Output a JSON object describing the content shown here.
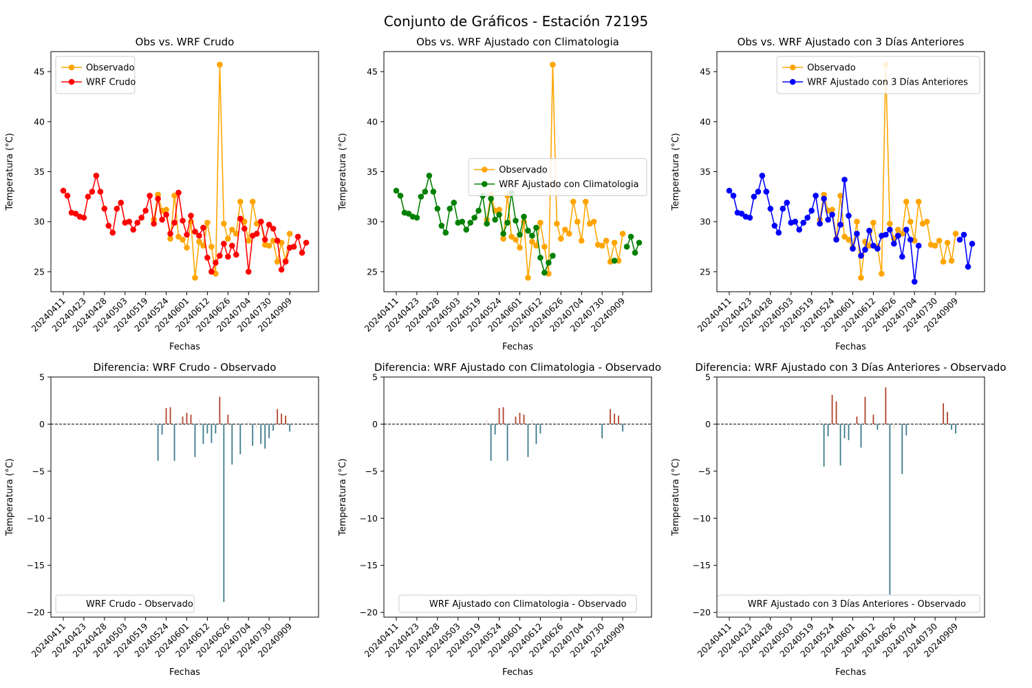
{
  "figure_title": "Conjunto de Gráficos - Estación 72195",
  "colors": {
    "observed": "#ffa500",
    "wrf_crudo": "#ff0000",
    "wrf_clim": "#008000",
    "wrf_3d": "#0000ff",
    "diff_pos": "#b2402a",
    "diff_neg": "#3a7a8c",
    "diff_small": "#f3e3da"
  },
  "date_ticks": [
    "20240411",
    "20240423",
    "20240428",
    "20240503",
    "20240519",
    "20240524",
    "20240601",
    "20240612",
    "20240626",
    "20240704",
    "20240730",
    "20240909"
  ],
  "chart_data": [
    {
      "type": "line",
      "title": "Obs vs. WRF Crudo",
      "xlabel": "Fechas",
      "ylabel": "Temperatura (°C)",
      "ylim": [
        23,
        47
      ],
      "yticks": [
        25,
        30,
        35,
        40,
        45
      ],
      "legend_position": "upper-left",
      "series": [
        {
          "name": "Observado",
          "color": "#ffa500",
          "start": 22,
          "values": [
            30.2,
            32.7,
            31.1,
            31.2,
            28.3,
            32.6,
            28.5,
            28.2,
            27.4,
            30.0,
            24.4,
            28.0,
            27.6,
            29.9,
            27.5,
            24.8,
            45.7,
            29.8,
            28.3,
            29.2,
            28.8,
            32.0,
            30.0,
            28.1,
            32.0,
            29.8,
            30.0,
            27.7,
            27.6,
            28.1,
            26.0,
            27.9,
            26.1,
            28.8
          ]
        },
        {
          "name": "WRF Crudo",
          "color": "#ff0000",
          "start": 0,
          "values": [
            33.1,
            32.6,
            30.9,
            30.8,
            30.5,
            30.4,
            32.5,
            33.0,
            34.6,
            33.0,
            31.3,
            29.6,
            28.9,
            31.3,
            31.9,
            29.9,
            30.0,
            29.2,
            29.9,
            30.4,
            31.1,
            32.6,
            29.8,
            32.3,
            30.2,
            30.7,
            28.8,
            29.9,
            32.9,
            30.1,
            28.7,
            30.6,
            29.0,
            28.6,
            29.4,
            26.4,
            25.0,
            25.9,
            26.6,
            27.8,
            26.5,
            27.6,
            26.7,
            30.3,
            29.3,
            25.0,
            28.6,
            28.8,
            30.0,
            28.2,
            29.7,
            29.3,
            28.1,
            25.2,
            26.0,
            27.4,
            27.5,
            28.5,
            26.9,
            27.9
          ]
        }
      ]
    },
    {
      "type": "line",
      "title": "Obs vs. WRF Ajustado con Climatologia",
      "xlabel": "Fechas",
      "ylabel": "Temperatura (°C)",
      "ylim": [
        23,
        47
      ],
      "yticks": [
        25,
        30,
        35,
        40,
        45
      ],
      "legend_position": "center-right",
      "series": [
        {
          "name": "Observado",
          "color": "#ffa500",
          "start": 22,
          "values": [
            30.2,
            32.7,
            31.1,
            31.2,
            28.3,
            32.6,
            28.5,
            28.2,
            27.4,
            30.0,
            24.4,
            28.0,
            27.6,
            29.9,
            27.5,
            24.8,
            45.7,
            29.8,
            28.3,
            29.2,
            28.8,
            32.0,
            30.0,
            28.1,
            32.0,
            29.8,
            30.0,
            27.7,
            27.6,
            28.1,
            26.0,
            27.9,
            26.1,
            28.8
          ]
        },
        {
          "name": "WRF Ajustado con Climatologia",
          "color": "#008000",
          "start": 0,
          "segments": [
            {
              "start": 0,
              "values": [
                33.1,
                32.6,
                30.9,
                30.8,
                30.5,
                30.4,
                32.5,
                33.0,
                34.6,
                33.0,
                31.3,
                29.6,
                28.9,
                31.3,
                31.9,
                29.9,
                30.0,
                29.2,
                29.9,
                30.4,
                31.1,
                32.6,
                29.8,
                32.3,
                30.2,
                30.7,
                28.8,
                29.9,
                32.9,
                30.1,
                28.7,
                30.5,
                29.1,
                28.6,
                29.4,
                26.4,
                24.9,
                25.9,
                26.6
              ]
            },
            {
              "start": 53,
              "values": [
                26.1
              ]
            },
            {
              "start": 56,
              "values": [
                27.5,
                28.5,
                26.9,
                27.9
              ]
            }
          ]
        }
      ]
    },
    {
      "type": "line",
      "title": "Obs vs. WRF Ajustado con 3 Días Anteriores",
      "xlabel": "Fechas",
      "ylabel": "Temperatura (°C)",
      "ylim": [
        23,
        47
      ],
      "yticks": [
        25,
        30,
        35,
        40,
        45
      ],
      "legend_position": "upper-right",
      "series": [
        {
          "name": "Observado",
          "color": "#ffa500",
          "start": 22,
          "values": [
            30.2,
            32.7,
            31.1,
            31.2,
            28.3,
            32.6,
            28.5,
            28.2,
            27.4,
            30.0,
            24.4,
            28.0,
            27.6,
            29.9,
            27.5,
            24.8,
            45.7,
            29.8,
            28.3,
            29.2,
            28.8,
            32.0,
            30.0,
            28.1,
            32.0,
            29.8,
            30.0,
            27.7,
            27.6,
            28.1,
            26.0,
            27.9,
            26.1,
            28.8
          ]
        },
        {
          "name": "WRF Ajustado con 3 Días Anteriores",
          "color": "#0000ff",
          "segments": [
            {
              "start": 0,
              "values": [
                33.1,
                32.6,
                30.9,
                30.8,
                30.5,
                30.4,
                32.5,
                33.0,
                34.6,
                33.0,
                31.3,
                29.6,
                28.9,
                31.3,
                31.9,
                29.9,
                30.0,
                29.2,
                29.9,
                30.4,
                31.1,
                32.6,
                29.8,
                32.3,
                30.2,
                30.7,
                28.2,
                29.7,
                34.2,
                30.6,
                27.3,
                28.8,
                26.6,
                27.2,
                29.1,
                27.6,
                27.3,
                28.6,
                28.7,
                29.2,
                27.8,
                28.6,
                26.5,
                29.2,
                28.2,
                24.0,
                27.6
              ]
            },
            {
              "start": 56,
              "values": [
                28.2,
                28.7,
                25.5,
                27.8
              ]
            }
          ]
        }
      ]
    },
    {
      "type": "bar",
      "title": "Diferencia: WRF Crudo - Observado",
      "xlabel": "Fechas",
      "ylabel": "Temperatura (°C)",
      "ylim": [
        -20.5,
        5
      ],
      "yticks": [
        5,
        0,
        -5,
        -10,
        -15,
        -20
      ],
      "legend_position": "lower-left",
      "series": [
        {
          "name": "WRF Crudo - Observado",
          "start": 22,
          "values": [
            0.5,
            -3.9,
            -1.1,
            1.7,
            1.8,
            -3.9,
            0.2,
            0.8,
            1.2,
            1.0,
            -3.5,
            0.5,
            -2.1,
            -1.0,
            -2.0,
            -1.0,
            2.9,
            -18.9,
            1.0,
            -4.3,
            -0.2,
            -3.2,
            0.0,
            0.2,
            -2.3,
            -0.5,
            -2.1,
            -2.6,
            -1.5,
            -0.7,
            1.6,
            1.1,
            0.9,
            -0.8
          ]
        }
      ]
    },
    {
      "type": "bar",
      "title": "Diferencia: WRF Ajustado con Climatologia - Observado",
      "xlabel": "Fechas",
      "ylabel": "Temperatura (°C)",
      "ylim": [
        -20.5,
        5
      ],
      "yticks": [
        5,
        0,
        -5,
        -10,
        -15,
        -20
      ],
      "legend_position": "lower-center",
      "series": [
        {
          "name": "WRF Ajustado con Climatologia - Observado",
          "start": 22,
          "values": [
            0.5,
            -3.9,
            -1.1,
            1.7,
            1.8,
            -3.9,
            0.2,
            0.8,
            1.2,
            1.0,
            -3.5,
            0.5,
            -2.1,
            -1.0,
            null,
            null,
            null,
            null,
            null,
            null,
            null,
            null,
            null,
            null,
            null,
            null,
            null,
            null,
            -1.5,
            null,
            1.6,
            1.1,
            0.9,
            -0.8
          ]
        }
      ]
    },
    {
      "type": "bar",
      "title": "Diferencia: WRF Ajustado con 3 Días Anteriores - Observado",
      "xlabel": "Fechas",
      "ylabel": "Temperatura (°C)",
      "ylim": [
        -20.5,
        5
      ],
      "yticks": [
        5,
        0,
        -5,
        -10,
        -15,
        -20
      ],
      "legend_position": "lower-right",
      "series": [
        {
          "name": "WRF Ajustado con 3 Días Anteriores - Observado",
          "start": 22,
          "values": [
            0.5,
            -4.5,
            -1.3,
            3.1,
            2.4,
            -4.4,
            -1.5,
            -1.7,
            0.0,
            0.8,
            -2.5,
            2.9,
            -0.2,
            1.0,
            -0.6,
            0.2,
            3.9,
            -18.1,
            -0.5,
            0.0,
            -5.3,
            -1.2,
            null,
            null,
            null,
            null,
            null,
            null,
            null,
            null,
            2.2,
            1.3,
            -0.6,
            -1.0
          ]
        }
      ]
    }
  ]
}
